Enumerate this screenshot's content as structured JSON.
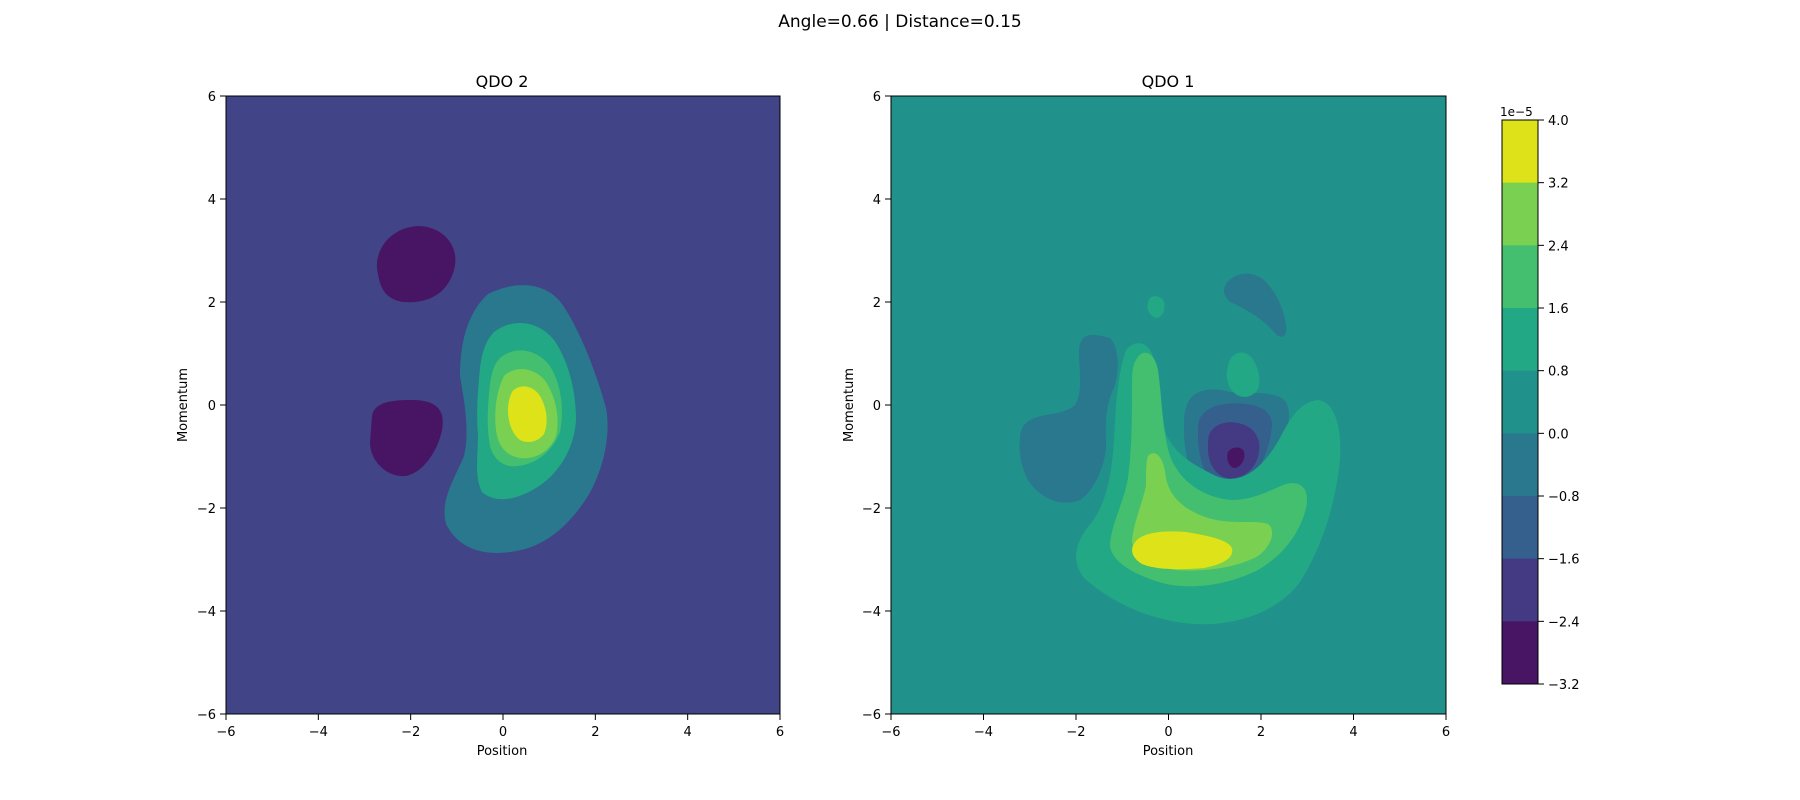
{
  "figure": {
    "suptitle": "Angle=0.66 | Distance=0.15"
  },
  "chart_data": [
    {
      "type": "heatmap",
      "subtype": "filled-contour",
      "title": "QDO 2",
      "xlabel": "Position",
      "ylabel": "Momentum",
      "xlim": [
        -6,
        6
      ],
      "ylim": [
        -6,
        6
      ],
      "xticks": [
        "−6",
        "−4",
        "−2",
        "0",
        "2",
        "4",
        "6"
      ],
      "yticks": [
        "−6",
        "−4",
        "−2",
        "0",
        "2",
        "4",
        "6"
      ],
      "grid": false,
      "background_level": "-1.6 to -0.8",
      "colors": {
        "background": "#414487",
        "lobes": "#471563",
        "ring1": "#2a788e",
        "ring2": "#22a884",
        "ring3": "#44bf70",
        "ring4": "#7ad151",
        "peak": "#dde318"
      }
    },
    {
      "type": "heatmap",
      "subtype": "filled-contour",
      "title": "QDO 1",
      "xlabel": "Position",
      "ylabel": "Momentum",
      "xlim": [
        -6,
        6
      ],
      "ylim": [
        -6,
        6
      ],
      "xticks": [
        "−6",
        "−4",
        "−2",
        "0",
        "2",
        "4",
        "6"
      ],
      "yticks": [
        "−6",
        "−4",
        "−2",
        "0",
        "2",
        "4",
        "6"
      ],
      "grid": false,
      "background_level": "0.0 to 0.8",
      "colors": {
        "background": "#21918c",
        "neg1": "#2a788e",
        "neg2": "#355f8d",
        "neg3": "#443983",
        "neg4": "#471563",
        "pos1": "#22a884",
        "pos2": "#44bf70",
        "pos3": "#7ad151",
        "pos4": "#dde318"
      }
    }
  ],
  "colorbar": {
    "multiplier": "1e−5",
    "tick_labels": [
      "4.0",
      "3.2",
      "2.4",
      "1.6",
      "0.8",
      "0.0",
      "−0.8",
      "−1.6",
      "−2.4",
      "−3.2"
    ],
    "colors_top_to_bottom": [
      "#dde318",
      "#7ad151",
      "#44bf70",
      "#22a884",
      "#21918c",
      "#2a788e",
      "#355f8d",
      "#443983",
      "#471563"
    ]
  }
}
